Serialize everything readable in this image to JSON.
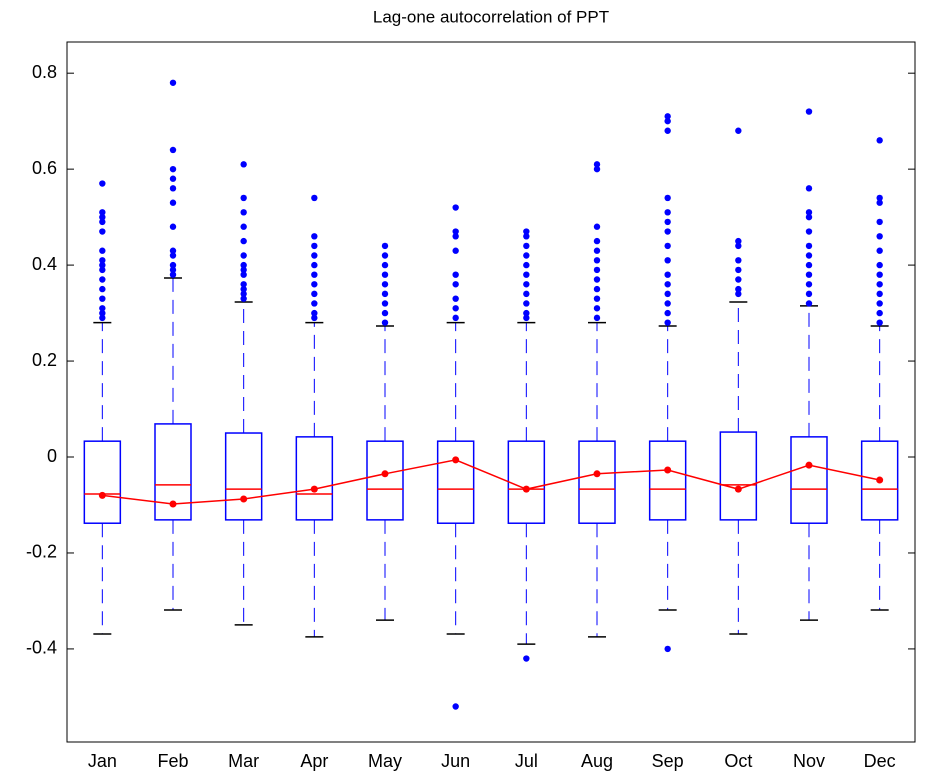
{
  "chart_data": {
    "type": "box",
    "title": "Lag-one autocorrelation of PPT",
    "categories": [
      "Jan",
      "Feb",
      "Mar",
      "Apr",
      "May",
      "Jun",
      "Jul",
      "Aug",
      "Sep",
      "Oct",
      "Nov",
      "Dec"
    ],
    "box_color": "#0000ff",
    "median_color": "#ff0000",
    "mean_color": "#ff0000",
    "flier_color": "#0000ff",
    "boxes": [
      {
        "whislo": -0.369,
        "q1": -0.138,
        "med": -0.077,
        "q3": 0.033,
        "whishi": 0.28,
        "fliers": [
          0.29,
          0.3,
          0.31,
          0.33,
          0.35,
          0.37,
          0.39,
          0.4,
          0.41,
          0.43,
          0.47,
          0.49,
          0.5,
          0.51,
          0.57
        ]
      },
      {
        "whislo": -0.319,
        "q1": -0.131,
        "med": -0.058,
        "q3": 0.069,
        "whishi": 0.373,
        "fliers": [
          0.38,
          0.39,
          0.4,
          0.42,
          0.43,
          0.48,
          0.53,
          0.56,
          0.58,
          0.6,
          0.64,
          0.78
        ]
      },
      {
        "whislo": -0.35,
        "q1": -0.131,
        "med": -0.067,
        "q3": 0.05,
        "whishi": 0.323,
        "fliers": [
          0.33,
          0.34,
          0.35,
          0.36,
          0.38,
          0.39,
          0.4,
          0.42,
          0.45,
          0.48,
          0.51,
          0.54,
          0.61
        ]
      },
      {
        "whislo": -0.375,
        "q1": -0.131,
        "med": -0.077,
        "q3": 0.042,
        "whishi": 0.28,
        "fliers": [
          0.29,
          0.3,
          0.32,
          0.34,
          0.36,
          0.38,
          0.4,
          0.42,
          0.44,
          0.46,
          0.54
        ]
      },
      {
        "whislo": -0.34,
        "q1": -0.131,
        "med": -0.067,
        "q3": 0.033,
        "whishi": 0.273,
        "fliers": [
          0.28,
          0.3,
          0.32,
          0.34,
          0.36,
          0.38,
          0.4,
          0.42,
          0.44
        ]
      },
      {
        "whislo": -0.369,
        "q1": -0.138,
        "med": -0.067,
        "q3": 0.033,
        "whishi": 0.28,
        "fliers": [
          0.29,
          0.31,
          0.33,
          0.36,
          0.38,
          0.43,
          0.46,
          0.47,
          0.52,
          -0.52
        ]
      },
      {
        "whislo": -0.39,
        "q1": -0.138,
        "med": -0.067,
        "q3": 0.033,
        "whishi": 0.28,
        "fliers": [
          0.29,
          0.3,
          0.32,
          0.34,
          0.36,
          0.38,
          0.4,
          0.42,
          0.44,
          0.46,
          0.47,
          -0.42
        ]
      },
      {
        "whislo": -0.375,
        "q1": -0.138,
        "med": -0.067,
        "q3": 0.033,
        "whishi": 0.28,
        "fliers": [
          0.29,
          0.31,
          0.33,
          0.35,
          0.37,
          0.39,
          0.41,
          0.43,
          0.45,
          0.48,
          0.6,
          0.61
        ]
      },
      {
        "whislo": -0.319,
        "q1": -0.131,
        "med": -0.067,
        "q3": 0.033,
        "whishi": 0.273,
        "fliers": [
          0.28,
          0.3,
          0.32,
          0.34,
          0.36,
          0.38,
          0.41,
          0.44,
          0.47,
          0.49,
          0.51,
          0.54,
          0.68,
          0.7,
          0.71,
          -0.4
        ]
      },
      {
        "whislo": -0.369,
        "q1": -0.131,
        "med": -0.058,
        "q3": 0.052,
        "whishi": 0.323,
        "fliers": [
          0.34,
          0.35,
          0.37,
          0.39,
          0.41,
          0.44,
          0.45,
          0.68
        ]
      },
      {
        "whislo": -0.34,
        "q1": -0.138,
        "med": -0.067,
        "q3": 0.042,
        "whishi": 0.315,
        "fliers": [
          0.32,
          0.34,
          0.36,
          0.38,
          0.4,
          0.42,
          0.44,
          0.47,
          0.5,
          0.51,
          0.56,
          0.72
        ]
      },
      {
        "whislo": -0.319,
        "q1": -0.131,
        "med": -0.067,
        "q3": 0.033,
        "whishi": 0.273,
        "fliers": [
          0.28,
          0.3,
          0.32,
          0.34,
          0.36,
          0.38,
          0.4,
          0.43,
          0.46,
          0.49,
          0.53,
          0.54,
          0.66
        ]
      }
    ],
    "means": [
      -0.08,
      -0.098,
      -0.0875,
      -0.067,
      -0.035,
      -0.006,
      -0.067,
      -0.035,
      -0.027,
      -0.067,
      -0.017,
      -0.048
    ],
    "ylim": [
      -0.594,
      0.865
    ],
    "yticks": [
      -0.4,
      -0.2,
      0,
      0.2,
      0.4,
      0.6,
      0.8
    ]
  }
}
